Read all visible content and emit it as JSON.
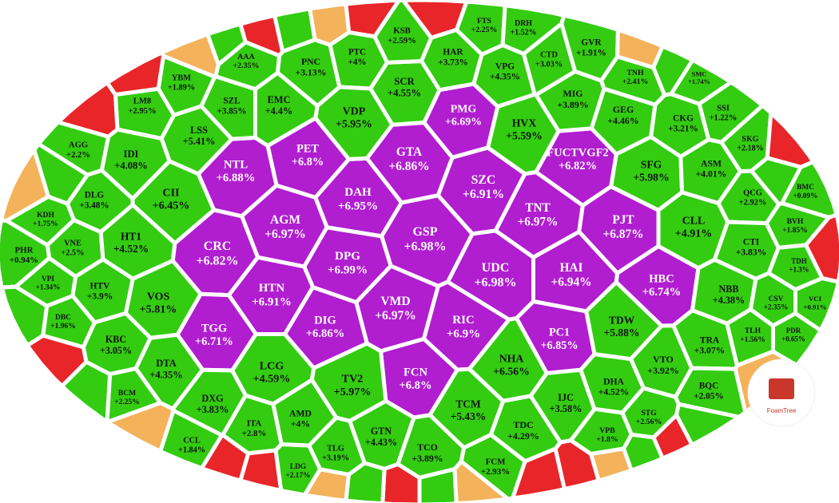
{
  "branding": "FoamTree",
  "cells": [
    {
      "ticker": "PMG",
      "change": "+6.69%",
      "color": "#b01ed0"
    },
    {
      "ticker": "PET",
      "change": "+6.8%",
      "color": "#b01ed0"
    },
    {
      "ticker": "NTL",
      "change": "+6.88%",
      "color": "#b01ed0"
    },
    {
      "ticker": "GTA",
      "change": "+6.86%",
      "color": "#b01ed0"
    },
    {
      "ticker": "FUCTVGF2",
      "change": "+6.82%",
      "color": "#b01ed0"
    },
    {
      "ticker": "SZC",
      "change": "+6.91%",
      "color": "#b01ed0"
    },
    {
      "ticker": "DAH",
      "change": "+6.95%",
      "color": "#b01ed0"
    },
    {
      "ticker": "TNT",
      "change": "+6.97%",
      "color": "#b01ed0"
    },
    {
      "ticker": "PJT",
      "change": "+6.87%",
      "color": "#b01ed0"
    },
    {
      "ticker": "AGM",
      "change": "+6.97%",
      "color": "#b01ed0"
    },
    {
      "ticker": "GSP",
      "change": "+6.98%",
      "color": "#b01ed0"
    },
    {
      "ticker": "CRC",
      "change": "+6.82%",
      "color": "#b01ed0"
    },
    {
      "ticker": "DPG",
      "change": "+6.99%",
      "color": "#b01ed0"
    },
    {
      "ticker": "UDC",
      "change": "+6.98%",
      "color": "#b01ed0"
    },
    {
      "ticker": "HAI",
      "change": "+6.94%",
      "color": "#b01ed0"
    },
    {
      "ticker": "HBC",
      "change": "+6.74%",
      "color": "#b01ed0"
    },
    {
      "ticker": "HTN",
      "change": "+6.91%",
      "color": "#b01ed0"
    },
    {
      "ticker": "VMD",
      "change": "+6.97%",
      "color": "#b01ed0"
    },
    {
      "ticker": "RIC",
      "change": "+6.9%",
      "color": "#b01ed0"
    },
    {
      "ticker": "PC1",
      "change": "+6.85%",
      "color": "#b01ed0"
    },
    {
      "ticker": "DIG",
      "change": "+6.86%",
      "color": "#b01ed0"
    },
    {
      "ticker": "TGG",
      "change": "+6.71%",
      "color": "#b01ed0"
    },
    {
      "ticker": "FCN",
      "change": "+6.8%",
      "color": "#b01ed0"
    },
    {
      "ticker": "PTC",
      "change": "+4%",
      "color": "#33cc11"
    },
    {
      "ticker": "HAR",
      "change": "+3.73%",
      "color": "#33cc11"
    },
    {
      "ticker": "VPG",
      "change": "+4.35%",
      "color": "#33cc11"
    },
    {
      "ticker": "SCR",
      "change": "+4.55%",
      "color": "#33cc11"
    },
    {
      "ticker": "EMC",
      "change": "+4.4%",
      "color": "#33cc11"
    },
    {
      "ticker": "VDP",
      "change": "+5.95%",
      "color": "#33cc11"
    },
    {
      "ticker": "SZL",
      "change": "+3.85%",
      "color": "#33cc11"
    },
    {
      "ticker": "MIG",
      "change": "+3.89%",
      "color": "#33cc11"
    },
    {
      "ticker": "GEG",
      "change": "+4.46%",
      "color": "#33cc11"
    },
    {
      "ticker": "CKG",
      "change": "+3.21%",
      "color": "#33cc11"
    },
    {
      "ticker": "HVX",
      "change": "+5.59%",
      "color": "#33cc11"
    },
    {
      "ticker": "LSS",
      "change": "+5.41%",
      "color": "#33cc11"
    },
    {
      "ticker": "IDI",
      "change": "+4.08%",
      "color": "#33cc11"
    },
    {
      "ticker": "CII",
      "change": "+6.45%",
      "color": "#33cc11"
    },
    {
      "ticker": "SFG",
      "change": "+5.98%",
      "color": "#33cc11"
    },
    {
      "ticker": "ASM",
      "change": "+4.01%",
      "color": "#33cc11"
    },
    {
      "ticker": "DLG",
      "change": "+3.48%",
      "color": "#33cc11"
    },
    {
      "ticker": "QCG",
      "change": "+2.92%",
      "color": "#33cc11"
    },
    {
      "ticker": "HT1",
      "change": "+4.52%",
      "color": "#33cc11"
    },
    {
      "ticker": "CLL",
      "change": "+4.91%",
      "color": "#33cc11"
    },
    {
      "ticker": "CTI",
      "change": "+3.83%",
      "color": "#33cc11"
    },
    {
      "ticker": "VNE",
      "change": "+2.5%",
      "color": "#33cc11"
    },
    {
      "ticker": "HTV",
      "change": "+3.9%",
      "color": "#33cc11"
    },
    {
      "ticker": "VOS",
      "change": "+5.81%",
      "color": "#33cc11"
    },
    {
      "ticker": "NBB",
      "change": "+4.38%",
      "color": "#33cc11"
    },
    {
      "ticker": "CSV",
      "change": "+2.35%",
      "color": "#33cc11"
    },
    {
      "ticker": "TDW",
      "change": "+5.88%",
      "color": "#33cc11"
    },
    {
      "ticker": "TRA",
      "change": "+3.07%",
      "color": "#33cc11"
    },
    {
      "ticker": "KBC",
      "change": "+3.05%",
      "color": "#33cc11"
    },
    {
      "ticker": "DTA",
      "change": "+4.35%",
      "color": "#33cc11"
    },
    {
      "ticker": "VTO",
      "change": "+3.92%",
      "color": "#33cc11"
    },
    {
      "ticker": "NHA",
      "change": "+6.56%",
      "color": "#33cc11"
    },
    {
      "ticker": "LCG",
      "change": "+4.59%",
      "color": "#33cc11"
    },
    {
      "ticker": "TV2",
      "change": "+5.97%",
      "color": "#33cc11"
    },
    {
      "ticker": "DHA",
      "change": "+4.52%",
      "color": "#33cc11"
    },
    {
      "ticker": "DXG",
      "change": "+3.83%",
      "color": "#33cc11"
    },
    {
      "ticker": "TCM",
      "change": "+5.43%",
      "color": "#33cc11"
    },
    {
      "ticker": "AMD",
      "change": "+4%",
      "color": "#33cc11"
    },
    {
      "ticker": "ITA",
      "change": "+2.8%",
      "color": "#33cc11"
    },
    {
      "ticker": "TDC",
      "change": "+4.29%",
      "color": "#33cc11"
    },
    {
      "ticker": "GTN",
      "change": "+4.43%",
      "color": "#33cc11"
    },
    {
      "ticker": "TCO",
      "change": "+3.89%",
      "color": "#33cc11"
    },
    {
      "ticker": "TLG",
      "change": "+3.19%",
      "color": "#33cc11"
    },
    {
      "ticker": "FCM",
      "change": "+2.93%",
      "color": "#33cc11"
    },
    {
      "ticker": "LDG",
      "change": "+2.17%",
      "color": "#33cc11"
    },
    {
      "ticker": "BCM",
      "change": "+2.25%",
      "color": "#33cc11"
    },
    {
      "ticker": "STG",
      "change": "+2.56%",
      "color": "#33cc11"
    },
    {
      "ticker": "VPB",
      "change": "+1.8%",
      "color": "#33cc11"
    },
    {
      "ticker": "IJC",
      "change": "+3.58%",
      "color": "#33cc11"
    },
    {
      "ticker": "TNH",
      "change": "+2.41%",
      "color": "#33cc11"
    },
    {
      "ticker": "CTD",
      "change": "+3.03%",
      "color": "#33cc11"
    },
    {
      "ticker": "GVR",
      "change": "+1.91%",
      "color": "#33cc11"
    },
    {
      "ticker": "KSB",
      "change": "+2.59%",
      "color": "#33cc11"
    },
    {
      "ticker": "AAA",
      "change": "+2.35%",
      "color": "#33cc11"
    },
    {
      "ticker": "PNC",
      "change": "+3.13%",
      "color": "#33cc11"
    },
    {
      "ticker": "YBM",
      "change": "+1.89%",
      "color": "#33cc11"
    },
    {
      "ticker": "LM8",
      "change": "+2.95%",
      "color": "#33cc11"
    },
    {
      "ticker": "AGG",
      "change": "+2.2%",
      "color": "#33cc11"
    },
    {
      "ticker": "SMC",
      "change": "+1.74%",
      "color": "#33cc11"
    },
    {
      "ticker": "SKG",
      "change": "+2.18%",
      "color": "#33cc11"
    },
    {
      "ticker": "BMC",
      "change": "+0.09%",
      "color": "#33cc11"
    },
    {
      "ticker": "BVH",
      "change": "+1.85%",
      "color": "#33cc11"
    },
    {
      "ticker": "TDH",
      "change": "+1.3%",
      "color": "#33cc11"
    },
    {
      "ticker": "VCI",
      "change": "+0.91%",
      "color": "#33cc11"
    },
    {
      "ticker": "PDR",
      "change": "+0.65%",
      "color": "#33cc11"
    },
    {
      "ticker": "TLH",
      "change": "+1.56%",
      "color": "#33cc11"
    },
    {
      "ticker": "BQC",
      "change": "+2.05%",
      "color": "#33cc11"
    },
    {
      "ticker": "PHR",
      "change": "+0.94%",
      "color": "#33cc11"
    },
    {
      "ticker": "VPI",
      "change": "+1.34%",
      "color": "#33cc11"
    },
    {
      "ticker": "KDH",
      "change": "+1.75%",
      "color": "#33cc11"
    },
    {
      "ticker": "DBC",
      "change": "+1.96%",
      "color": "#33cc11"
    },
    {
      "ticker": "CCL",
      "change": "+1.84%",
      "color": "#33cc11"
    },
    {
      "ticker": "FTS",
      "change": "+2.25%",
      "color": "#33cc11"
    },
    {
      "ticker": "DRH",
      "change": "+1.52%",
      "color": "#33cc11"
    },
    {
      "ticker": "SSI",
      "change": "+1.22%",
      "color": "#33cc11"
    }
  ]
}
